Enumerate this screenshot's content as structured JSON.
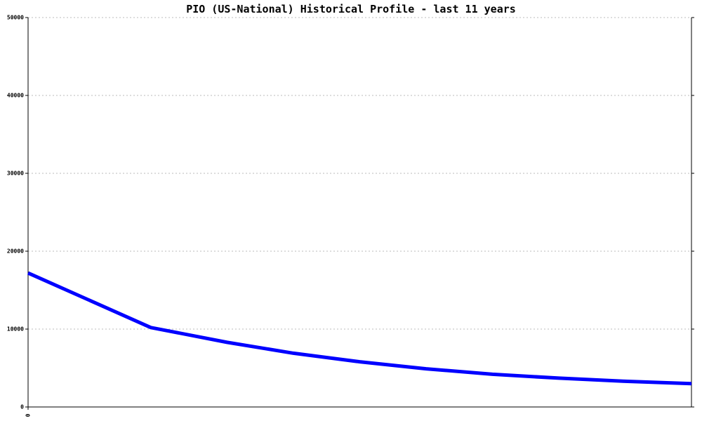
{
  "chart_data": {
    "type": "line",
    "title": "PIO (US-National) Historical Profile - last 11 years",
    "x": [
      0,
      18.5,
      30,
      40,
      50,
      60,
      70,
      80,
      90,
      100
    ],
    "series": [
      {
        "color": "#0000ff",
        "values": [
          17200,
          10200,
          8300,
          6900,
          5800,
          4900,
          4200,
          3700,
          3300,
          3000
        ]
      }
    ],
    "xlim": [
      0,
      100
    ],
    "xticks": [
      0
    ],
    "ylim": [
      0,
      50000
    ],
    "yticks": [
      0,
      10000,
      20000,
      30000,
      40000,
      50000
    ],
    "grid": true
  }
}
